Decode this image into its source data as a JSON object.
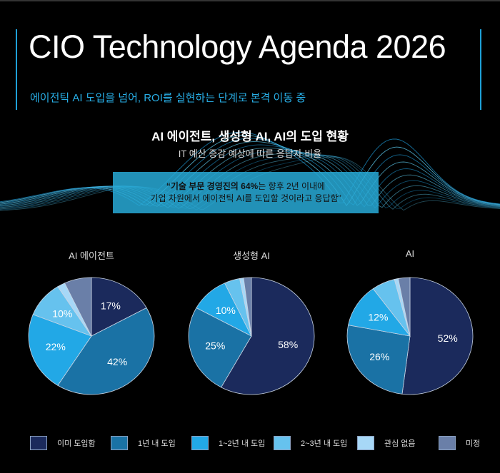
{
  "header": {
    "title": "CIO Technology Agenda 2026",
    "subtitle": "에이전틱 AI 도입을 넘어, ROI를 실현하는 단계로 본격 이동 중"
  },
  "section": {
    "title": "AI 에이전트, 생성형 AI, AI의 도입 현황",
    "subtitle": "IT 예산 증감 예상에 따른 응답자 비율"
  },
  "quote": {
    "line1_prefix": "“기술 부문 경영진의 64%",
    "line1_suffix": "는 향후 2년 이내에",
    "line2": "기업 차원에서 에이전틱 AI를 도입할 것이라고 응답함”"
  },
  "colors": {
    "accent": "#1ea0d8",
    "categories": [
      "#1b2a5c",
      "#1a72a5",
      "#22a8e6",
      "#66c2ee",
      "#a7d8f7",
      "#6a7fa8"
    ]
  },
  "chart_data": [
    {
      "type": "pie",
      "title": "AI 에이전트",
      "categories": [
        "이미 도입함",
        "1년 내 도입",
        "1~2년 내 도입",
        "2~3년 내 도입",
        "관심 없음",
        "미정"
      ],
      "values": [
        17,
        42,
        22,
        10,
        2,
        7
      ],
      "labels": [
        "17%",
        "42%",
        "22%",
        "10%",
        "",
        ""
      ]
    },
    {
      "type": "pie",
      "title": "생성형 AI",
      "categories": [
        "이미 도입함",
        "1년 내 도입",
        "1~2년 내 도입",
        "2~3년 내 도입",
        "관심 없음",
        "미정"
      ],
      "values": [
        58,
        25,
        10,
        4,
        1,
        2
      ],
      "labels": [
        "58%",
        "25%",
        "10%",
        "",
        "",
        ""
      ]
    },
    {
      "type": "pie",
      "title": "AI",
      "categories": [
        "이미 도입함",
        "1년 내 도입",
        "1~2년 내 도입",
        "2~3년 내 도입",
        "관심 없음",
        "미정"
      ],
      "values": [
        52,
        26,
        12,
        6,
        1,
        3
      ],
      "labels": [
        "52%",
        "26%",
        "12%",
        "",
        "",
        ""
      ]
    }
  ],
  "legend": [
    "이미 도입함",
    "1년 내 도입",
    "1~2년 내 도입",
    "2~3년 내 도입",
    "관심 없음",
    "미정"
  ]
}
